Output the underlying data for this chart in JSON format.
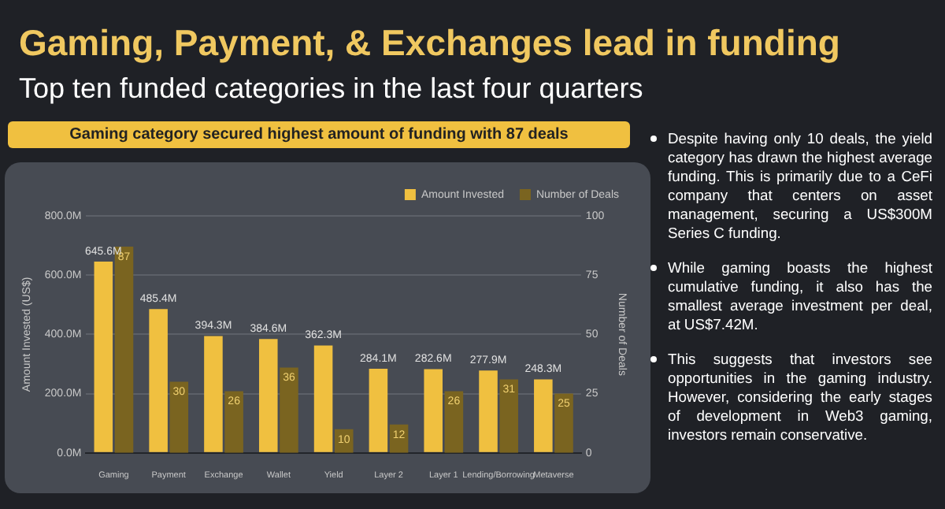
{
  "chart_data": {
    "type": "bar",
    "title": "Gaming, Payment, & Exchanges lead in funding",
    "subtitle": "Top ten funded categories in the last four quarters",
    "annotations": [
      "Gaming category secured highest amount of funding with 87 deals",
      "Despite having only 10 deals, the yield category has drawn the highest average funding. This is primarily due to a CeFi company that centers on asset management, securing a US$300M Series C funding.",
      "While gaming boasts the highest cumulative funding, it also has the smallest average investment per deal, at US$7.42M.",
      "This suggests that investors see opportunities in the gaming industry. However, considering the early stages of development in Web3 gaming, investors remain conservative."
    ],
    "categories": [
      "Gaming",
      "Payment",
      "Exchange",
      "Wallet",
      "Yield",
      "Layer 2",
      "Layer 1",
      "Lending/Borrowing",
      "Metaverse"
    ],
    "series": [
      {
        "name": "Amount Invested",
        "color": "#f0c040",
        "values": [
          645.6,
          485.4,
          394.3,
          384.6,
          362.3,
          284.1,
          282.6,
          277.9,
          248.3
        ],
        "value_labels": [
          "645.6M",
          "485.4M",
          "394.3M",
          "384.6M",
          "362.3M",
          "284.1M",
          "282.6M",
          "277.9M",
          "248.3M"
        ]
      },
      {
        "name": "Number of Deals",
        "color": "#7a6420",
        "axis": "y2",
        "values": [
          87,
          30,
          26,
          36,
          10,
          12,
          26,
          31,
          25
        ],
        "value_labels": [
          "87",
          "30",
          "26",
          "36",
          "10",
          "12",
          "26",
          "31",
          "25"
        ]
      }
    ],
    "ylabel": "Amount Invested (US$)",
    "y2label": "Number of Deals",
    "ylim": [
      0,
      800
    ],
    "yticks": [
      {
        "value": 0,
        "label": "0.0M"
      },
      {
        "value": 200,
        "label": "200.0M"
      },
      {
        "value": 400,
        "label": "400.0M"
      },
      {
        "value": 600,
        "label": "600.0M"
      },
      {
        "value": 800,
        "label": "800.0M"
      }
    ],
    "y2lim": [
      0,
      100
    ],
    "y2ticks": [
      0,
      25,
      50,
      75,
      100
    ],
    "grid": "y",
    "legend": "top right"
  }
}
